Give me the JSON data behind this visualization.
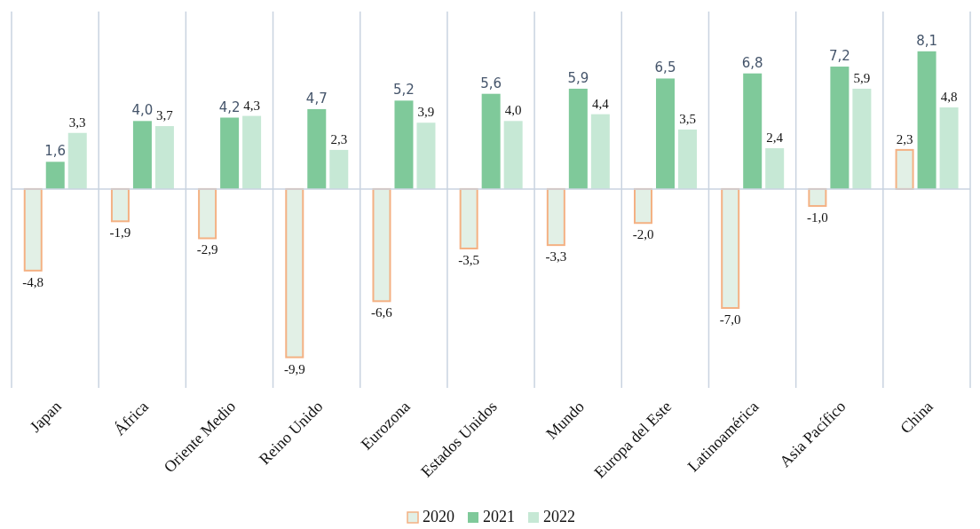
{
  "chart_data": {
    "type": "bar",
    "categories": [
      "Japan",
      "África",
      "Oriente Medio",
      "Reino Unido",
      "Eurozona",
      "Estados Unidos",
      "Mundo",
      "Europa del Este",
      "Latinoamérica",
      "Asia Pacífico",
      "China"
    ],
    "series": [
      {
        "name": "2020",
        "color": "#e2f0e6",
        "values": [
          -4.8,
          -1.9,
          -2.9,
          -9.9,
          -6.6,
          -3.5,
          -3.3,
          -2.0,
          -7.0,
          -1.0,
          2.3
        ],
        "value_labels": [
          "-4,8",
          "-1,9",
          "-2,9",
          "-9,9",
          "-6,6",
          "-3,5",
          "-3,3",
          "-2,0",
          "-7,0",
          "-1,0",
          "2,3"
        ]
      },
      {
        "name": "2021",
        "color": "#7fc99a",
        "values": [
          1.6,
          4.0,
          4.2,
          4.7,
          5.2,
          5.6,
          5.9,
          6.5,
          6.8,
          7.2,
          8.1
        ],
        "value_labels": [
          "1,6",
          "4,0",
          "4,2",
          "4,7",
          "5,2",
          "5,6",
          "5,9",
          "6,5",
          "6,8",
          "7,2",
          "8,1"
        ]
      },
      {
        "name": "2022",
        "color": "#c6e8d5",
        "values": [
          3.3,
          3.7,
          4.3,
          2.3,
          3.9,
          4.0,
          4.4,
          3.5,
          2.4,
          5.9,
          4.8
        ],
        "value_labels": [
          "3,3",
          "3,7",
          "4,3",
          "2,3",
          "3,9",
          "4,0",
          "4,4",
          "3,5",
          "2,4",
          "5,9",
          "4,8"
        ]
      }
    ],
    "grid": "x",
    "legend": "bottom"
  }
}
